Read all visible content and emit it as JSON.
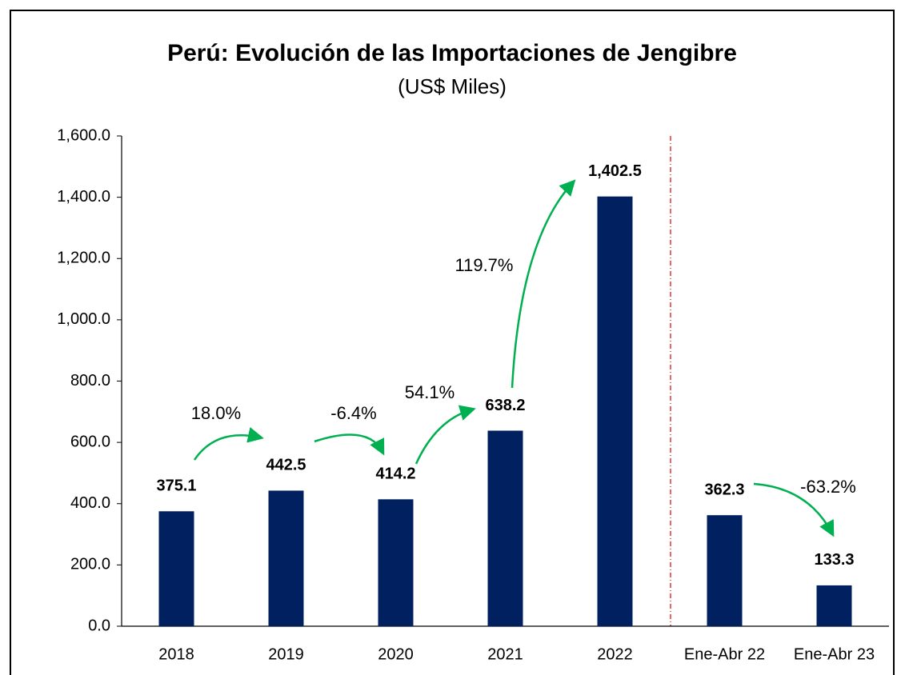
{
  "chart_data": {
    "type": "bar",
    "title": "Perú: Evolución de las Importaciones de Jengibre",
    "subtitle": "(US$ Miles)",
    "categories": [
      "2018",
      "2019",
      "2020",
      "2021",
      "2022",
      "Ene-Abr 22",
      "Ene-Abr 23"
    ],
    "values": [
      375.1,
      442.5,
      414.2,
      638.2,
      1402.5,
      362.3,
      133.3
    ],
    "value_labels": [
      "375.1",
      "442.5",
      "414.2",
      "638.2",
      "1,402.5",
      "362.3",
      "133.3"
    ],
    "color": "#002060",
    "ylim": [
      0,
      1600
    ],
    "yticks": [
      {
        "value": 0,
        "label": "0.0"
      },
      {
        "value": 200,
        "label": "200.0"
      },
      {
        "value": 400,
        "label": "400.0"
      },
      {
        "value": 600,
        "label": "600.0"
      },
      {
        "value": 800,
        "label": "800.0"
      },
      {
        "value": 1000,
        "label": "1,000.0"
      },
      {
        "value": 1200,
        "label": "1,200.0"
      },
      {
        "value": 1400,
        "label": "1,400.0"
      },
      {
        "value": 1600,
        "label": "1,600.0"
      }
    ],
    "annotations": [
      {
        "text": "18.0%"
      },
      {
        "text": "-6.4%"
      },
      {
        "text": "54.1%"
      },
      {
        "text": "119.7%"
      },
      {
        "text": "-63.2%"
      }
    ]
  }
}
